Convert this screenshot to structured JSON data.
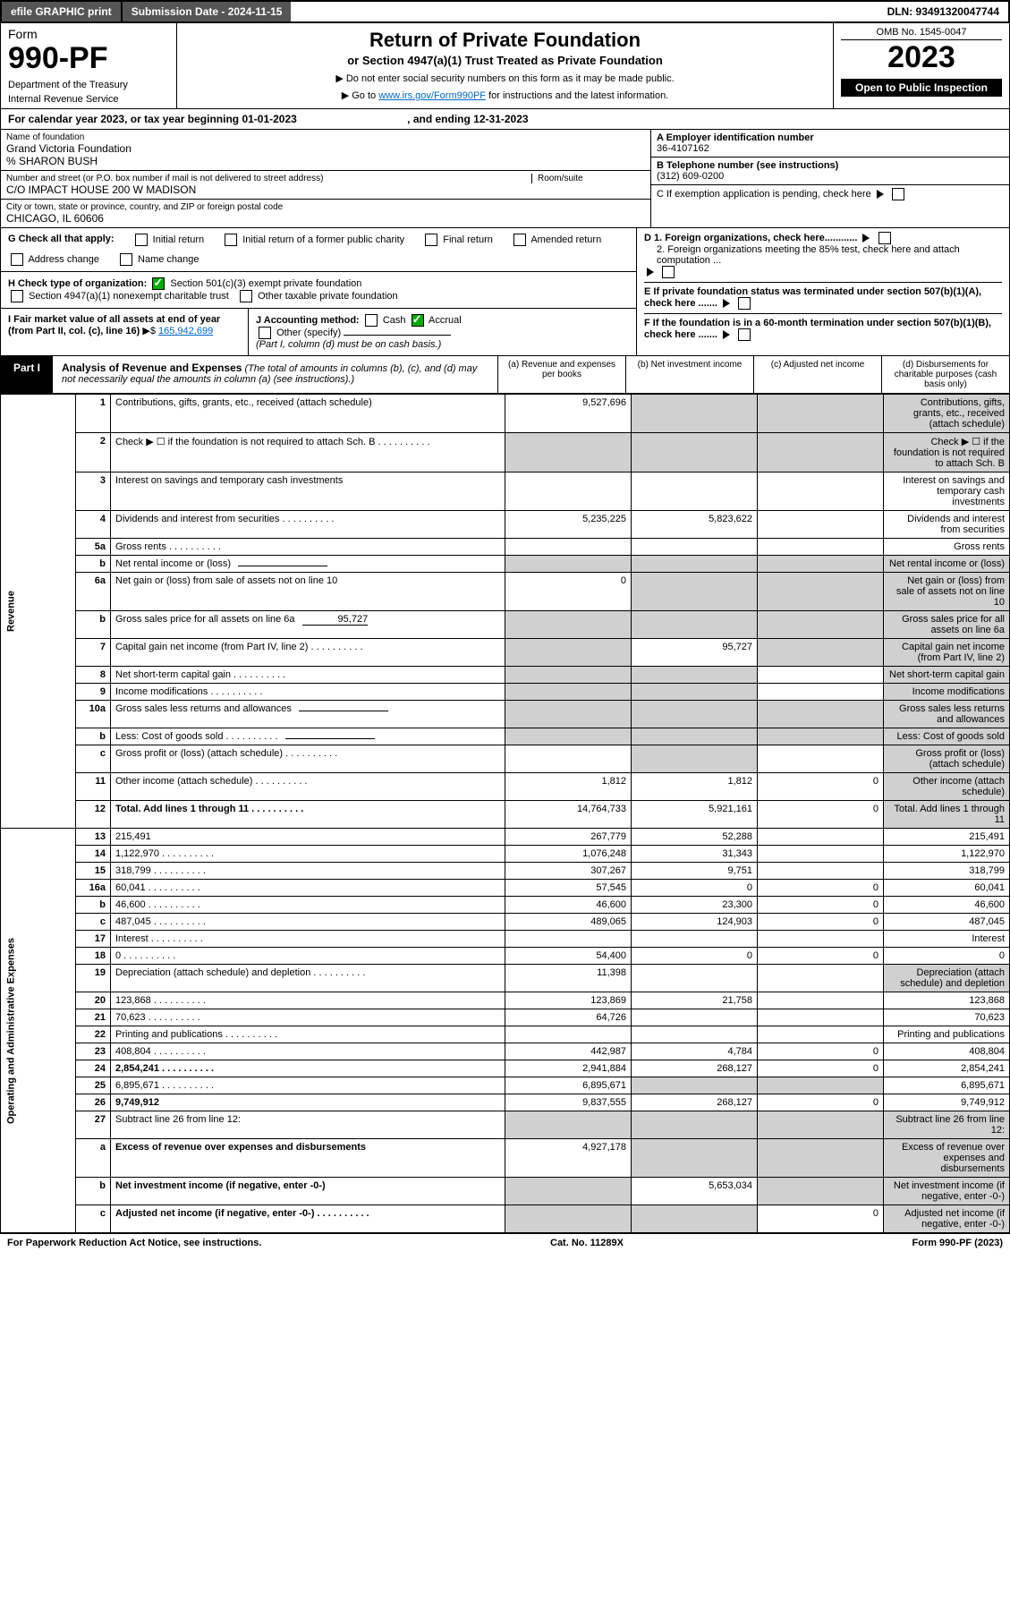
{
  "topbar": {
    "efile": "efile GRAPHIC print",
    "subdate_label": "Submission Date - 2024-11-15",
    "dln": "DLN: 93491320047744"
  },
  "header": {
    "form_word": "Form",
    "form_no": "990-PF",
    "dept": "Department of the Treasury",
    "irs": "Internal Revenue Service",
    "title": "Return of Private Foundation",
    "subtitle": "or Section 4947(a)(1) Trust Treated as Private Foundation",
    "note1": "▶ Do not enter social security numbers on this form as it may be made public.",
    "note2_a": "▶ Go to ",
    "note2_link": "www.irs.gov/Form990PF",
    "note2_b": " for instructions and the latest information.",
    "omb": "OMB No. 1545-0047",
    "year": "2023",
    "inspect": "Open to Public Inspection"
  },
  "calyear": {
    "a": "For calendar year 2023, or tax year beginning 01-01-2023",
    "b": ", and ending 12-31-2023"
  },
  "org": {
    "name_label": "Name of foundation",
    "name": "Grand Victoria Foundation",
    "care": "% SHARON BUSH",
    "addr_label": "Number and street (or P.O. box number if mail is not delivered to street address)",
    "addr": "C/O IMPACT HOUSE 200 W MADISON",
    "room_label": "Room/suite",
    "city_label": "City or town, state or province, country, and ZIP or foreign postal code",
    "city": "CHICAGO, IL  60606",
    "ein_label": "A Employer identification number",
    "ein": "36-4107162",
    "tel_label": "B Telephone number (see instructions)",
    "tel": "(312) 609-0200",
    "c": "C If exemption application is pending, check here",
    "d1": "D 1. Foreign organizations, check here............",
    "d2": "2. Foreign organizations meeting the 85% test, check here and attach computation ...",
    "e": "E  If private foundation status was terminated under section 507(b)(1)(A), check here .......",
    "f": "F  If the foundation is in a 60-month termination under section 507(b)(1)(B), check here ......."
  },
  "g": {
    "label": "G Check all that apply:",
    "opts": [
      "Initial return",
      "Initial return of a former public charity",
      "Final return",
      "Amended return",
      "Address change",
      "Name change"
    ]
  },
  "h": {
    "label": "H Check type of organization:",
    "o1": "Section 501(c)(3) exempt private foundation",
    "o2": "Section 4947(a)(1) nonexempt charitable trust",
    "o3": "Other taxable private foundation"
  },
  "i": {
    "label": "I Fair market value of all assets at end of year (from Part II, col. (c), line 16)",
    "arrow": "▶$",
    "val": "165,942,699"
  },
  "j": {
    "label": "J Accounting method:",
    "o1": "Cash",
    "o2": "Accrual",
    "o3": "Other (specify)",
    "note": "(Part I, column (d) must be on cash basis.)"
  },
  "part1": {
    "tab": "Part I",
    "title": "Analysis of Revenue and Expenses",
    "note": "(The total of amounts in columns (b), (c), and (d) may not necessarily equal the amounts in column (a) (see instructions).)",
    "cols": {
      "a": "(a)   Revenue and expenses per books",
      "b": "(b)   Net investment income",
      "c": "(c)  Adjusted net income",
      "d": "(d)  Disbursements for charitable purposes (cash basis only)"
    }
  },
  "sides": {
    "rev": "Revenue",
    "exp": "Operating and Administrative Expenses"
  },
  "rows": [
    {
      "n": "1",
      "d": "Contributions, gifts, grants, etc., received (attach schedule)",
      "a": "9,527,696",
      "bs": true,
      "cs": true,
      "ds": true
    },
    {
      "n": "2",
      "d": "Check ▶ ☐ if the foundation is not required to attach Sch. B",
      "dots": true,
      "as": true,
      "bs": true,
      "cs": true,
      "ds": true,
      "bold_not": true
    },
    {
      "n": "3",
      "d": "Interest on savings and temporary cash investments"
    },
    {
      "n": "4",
      "d": "Dividends and interest from securities",
      "dots": true,
      "a": "5,235,225",
      "b": "5,823,622"
    },
    {
      "n": "5a",
      "d": "Gross rents",
      "dots": true
    },
    {
      "n": "b",
      "d": "Net rental income or (loss)",
      "inline": true,
      "as": true,
      "bs": true,
      "cs": true,
      "ds": true
    },
    {
      "n": "6a",
      "d": "Net gain or (loss) from sale of assets not on line 10",
      "a": "0",
      "bs": true,
      "cs": true,
      "ds": true
    },
    {
      "n": "b",
      "d": "Gross sales price for all assets on line 6a",
      "inline_val": "95,727",
      "as": true,
      "bs": true,
      "cs": true,
      "ds": true
    },
    {
      "n": "7",
      "d": "Capital gain net income (from Part IV, line 2)",
      "dots": true,
      "as": true,
      "b": "95,727",
      "cs": true,
      "ds": true
    },
    {
      "n": "8",
      "d": "Net short-term capital gain",
      "dots": true,
      "as": true,
      "bs": true,
      "ds": true
    },
    {
      "n": "9",
      "d": "Income modifications",
      "dots": true,
      "as": true,
      "bs": true,
      "ds": true
    },
    {
      "n": "10a",
      "d": "Gross sales less returns and allowances",
      "inline": true,
      "as": true,
      "bs": true,
      "cs": true,
      "ds": true
    },
    {
      "n": "b",
      "d": "Less: Cost of goods sold",
      "dots": true,
      "inline": true,
      "as": true,
      "bs": true,
      "cs": true,
      "ds": true
    },
    {
      "n": "c",
      "d": "Gross profit or (loss) (attach schedule)",
      "dots": true,
      "bs": true,
      "ds": true
    },
    {
      "n": "11",
      "d": "Other income (attach schedule)",
      "dots": true,
      "a": "1,812",
      "b": "1,812",
      "c": "0",
      "ds": true
    },
    {
      "n": "12",
      "d": "Total. Add lines 1 through 11",
      "dots": true,
      "bold": true,
      "a": "14,764,733",
      "b": "5,921,161",
      "c": "0",
      "ds": true
    },
    {
      "n": "13",
      "d": "215,491",
      "a": "267,779",
      "b": "52,288",
      "sec": "exp"
    },
    {
      "n": "14",
      "d": "1,122,970",
      "dots": true,
      "a": "1,076,248",
      "b": "31,343"
    },
    {
      "n": "15",
      "d": "318,799",
      "dots": true,
      "a": "307,267",
      "b": "9,751"
    },
    {
      "n": "16a",
      "d": "60,041",
      "dots": true,
      "a": "57,545",
      "b": "0",
      "c": "0"
    },
    {
      "n": "b",
      "d": "46,600",
      "dots": true,
      "a": "46,600",
      "b": "23,300",
      "c": "0"
    },
    {
      "n": "c",
      "d": "487,045",
      "dots": true,
      "a": "489,065",
      "b": "124,903",
      "c": "0"
    },
    {
      "n": "17",
      "d": "Interest",
      "dots": true
    },
    {
      "n": "18",
      "d": "0",
      "dots": true,
      "a": "54,400",
      "b": "0",
      "c": "0"
    },
    {
      "n": "19",
      "d": "Depreciation (attach schedule) and depletion",
      "dots": true,
      "a": "11,398",
      "ds": true
    },
    {
      "n": "20",
      "d": "123,868",
      "dots": true,
      "a": "123,869",
      "b": "21,758"
    },
    {
      "n": "21",
      "d": "70,623",
      "dots": true,
      "a": "64,726"
    },
    {
      "n": "22",
      "d": "Printing and publications",
      "dots": true
    },
    {
      "n": "23",
      "d": "408,804",
      "dots": true,
      "a": "442,987",
      "b": "4,784",
      "c": "0"
    },
    {
      "n": "24",
      "d": "2,854,241",
      "dots": true,
      "bold": true,
      "a": "2,941,884",
      "b": "268,127",
      "c": "0",
      "twoline": true
    },
    {
      "n": "25",
      "d": "6,895,671",
      "dots": true,
      "a": "6,895,671",
      "bs": true,
      "cs": true
    },
    {
      "n": "26",
      "d": "9,749,912",
      "bold": true,
      "a": "9,837,555",
      "b": "268,127",
      "c": "0",
      "twoline": true
    },
    {
      "n": "27",
      "d": "Subtract line 26 from line 12:",
      "as": true,
      "bs": true,
      "cs": true,
      "ds": true,
      "noside": true
    },
    {
      "n": "a",
      "d": "Excess of revenue over expenses and disbursements",
      "bold": true,
      "a": "4,927,178",
      "bs": true,
      "cs": true,
      "ds": true
    },
    {
      "n": "b",
      "d": "Net investment income (if negative, enter -0-)",
      "bold": true,
      "as": true,
      "b": "5,653,034",
      "cs": true,
      "ds": true
    },
    {
      "n": "c",
      "d": "Adjusted net income (if negative, enter -0-)",
      "dots": true,
      "bold": true,
      "as": true,
      "bs": true,
      "c": "0",
      "ds": true
    }
  ],
  "footer": {
    "left": "For Paperwork Reduction Act Notice, see instructions.",
    "mid": "Cat. No. 11289X",
    "right": "Form 990-PF (2023)"
  }
}
